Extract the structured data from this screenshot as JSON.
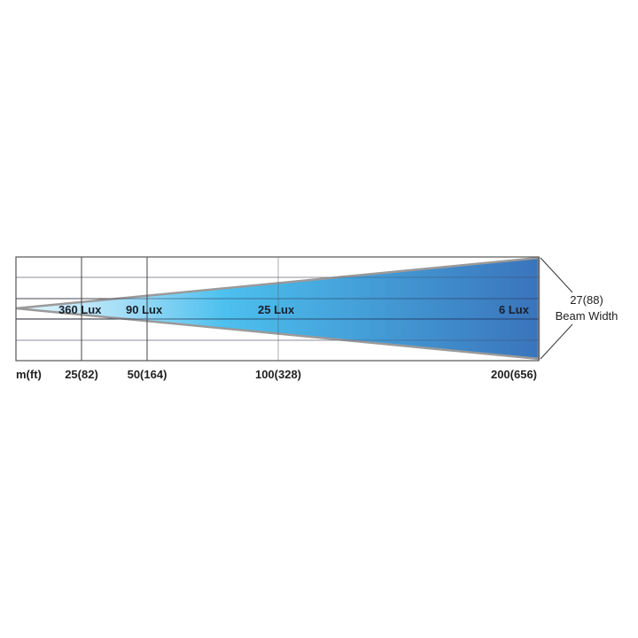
{
  "diagram": {
    "unit_label": "m(ft)",
    "distance_ticks": [
      "25(82)",
      "50(164)",
      "100(328)",
      "200(656)"
    ],
    "lux_labels": [
      "360 Lux",
      "90 Lux",
      "25 Lux",
      "6 Lux"
    ],
    "beam_width_value": "27(88)",
    "beam_width_label": "Beam Width",
    "colors": {
      "beam_light": "#e6f6fd",
      "beam_mid": "#4cc0ee",
      "beam_dark": "#3a74bb",
      "outline": "#9a9a9a",
      "grid": "#555555"
    }
  }
}
